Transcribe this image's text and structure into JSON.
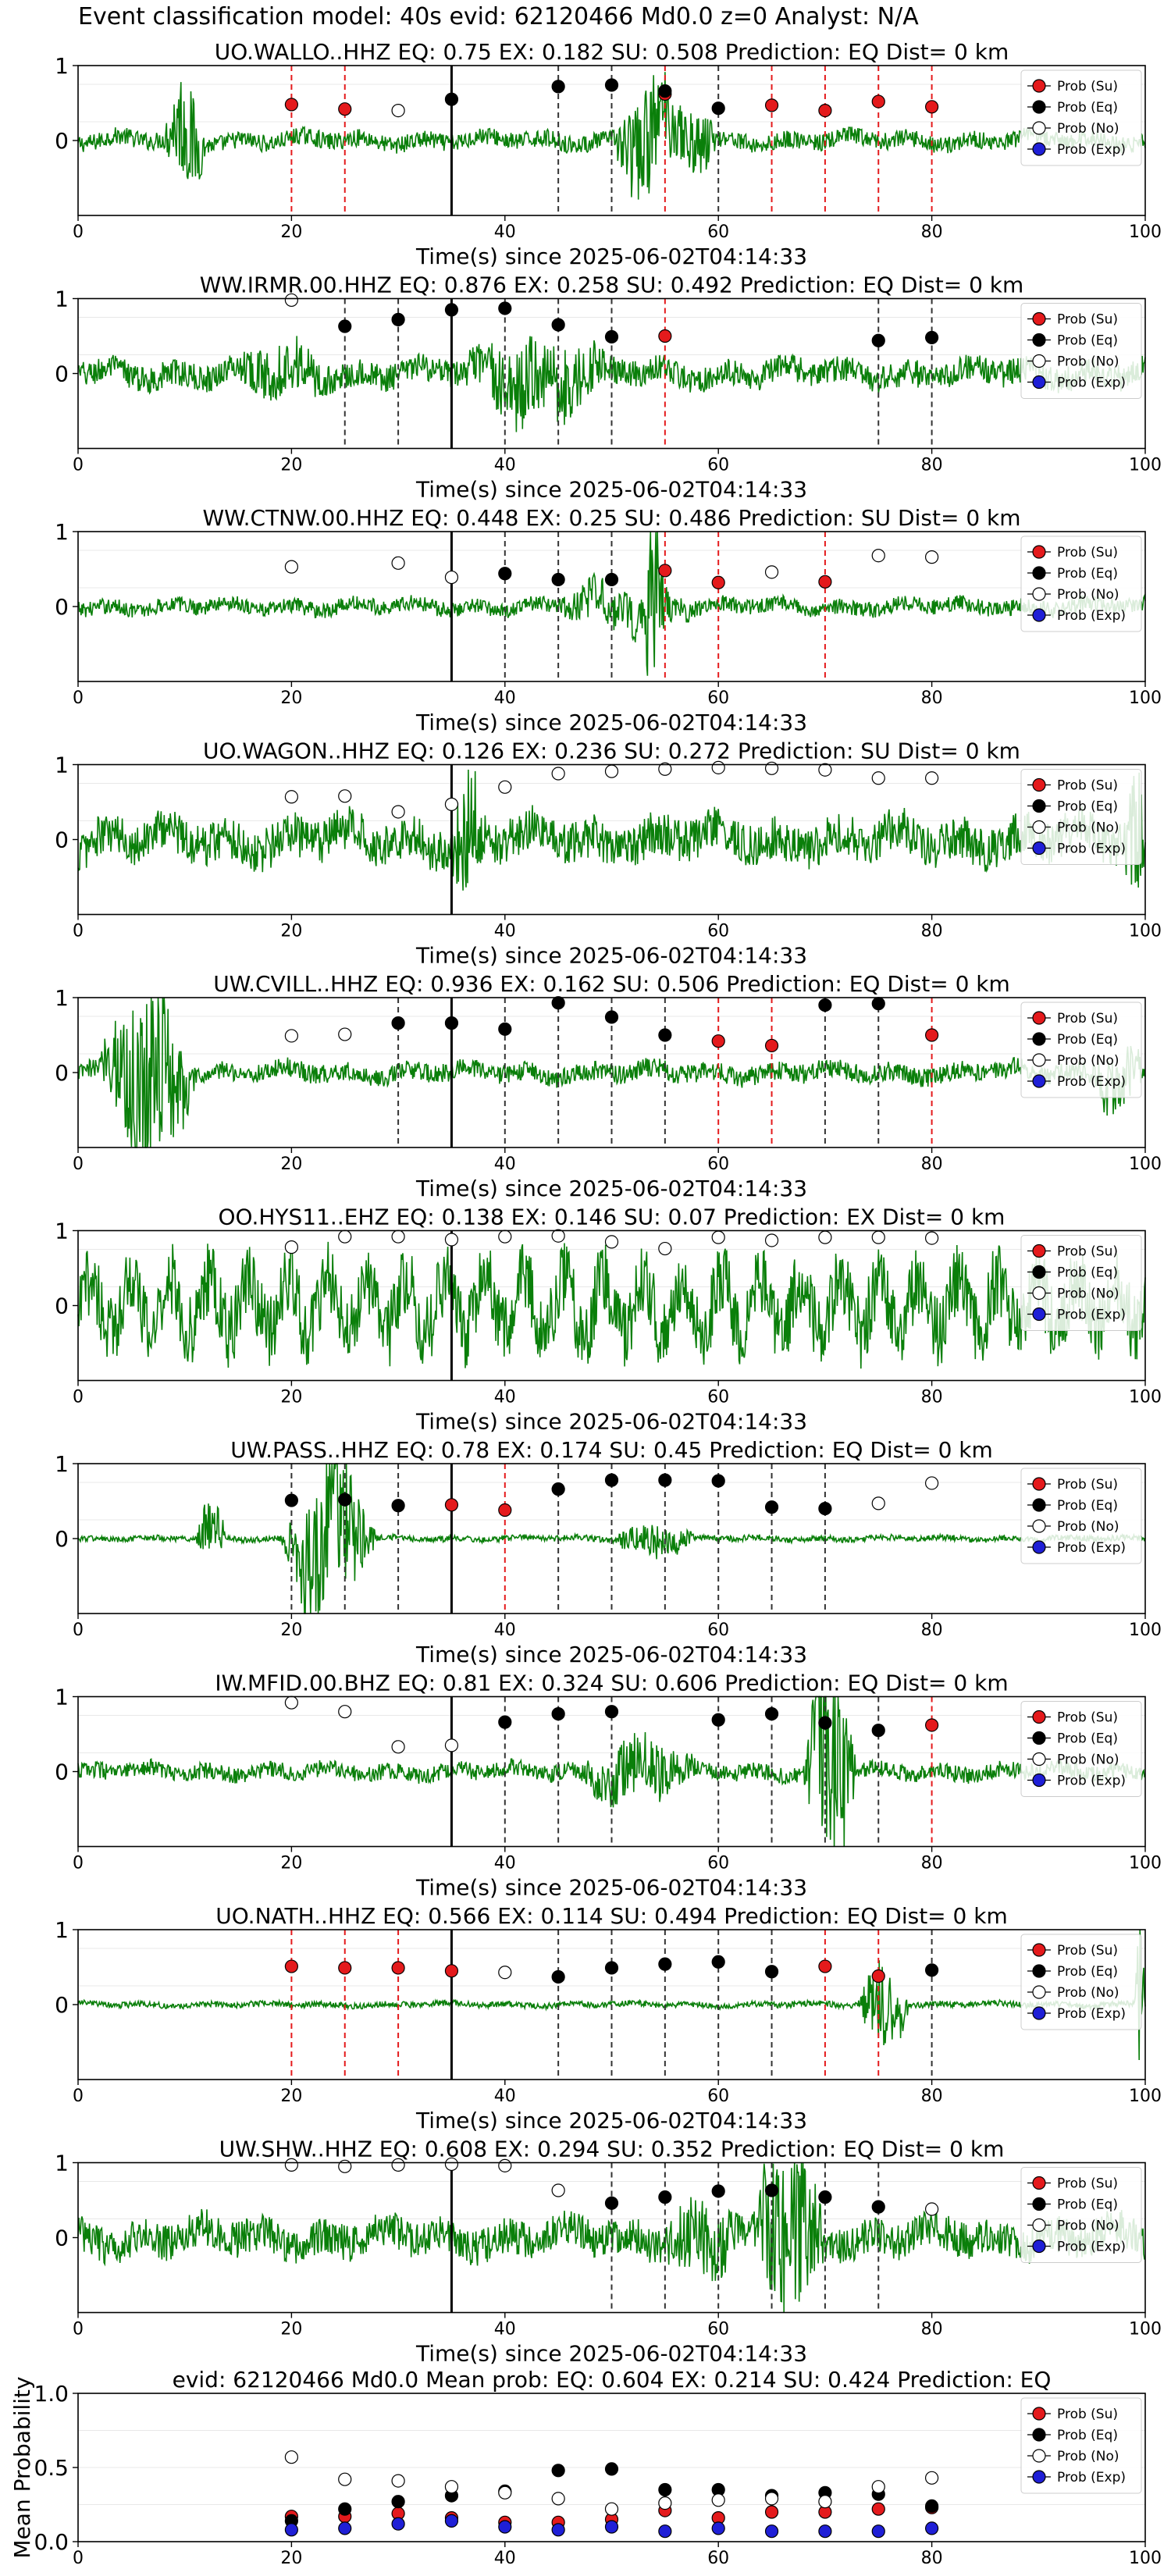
{
  "figure": {
    "suptitle": "Event classification model: 40s evid: 62120466 Md0.0 z=0 Analyst: N/A"
  },
  "colors": {
    "su": "#e41a1c",
    "eq": "#000000",
    "no": "#ffffff",
    "exp": "#1f1fd6",
    "waveform": "#0a7f0a",
    "su_line": "#e41a1c",
    "eq_line": "#333333",
    "origin_line": "#000000"
  },
  "legend_labels": [
    "Prob (Su)",
    "Prob (Eq)",
    "Prob (No)",
    "Prob (Exp)"
  ],
  "chart_data": [
    {
      "type": "scatter",
      "title": "UO.WALLO..HHZ   EQ: 0.75  EX: 0.182  SU: 0.508   Prediction: EQ    Dist= 0 km",
      "xlabel": "Time(s) since 2025-06-02T04:14:33",
      "xlim": [
        0,
        100
      ],
      "ylim": [
        -1,
        1
      ],
      "xticks": [
        "0",
        "20",
        "40",
        "60",
        "80",
        "100"
      ],
      "yticks": [
        "1",
        "0"
      ],
      "origin_line": 35,
      "series": [
        {
          "name": "Prob (Su)",
          "x": [
            20,
            25,
            55,
            65,
            70,
            75,
            80
          ],
          "y": [
            0.48,
            0.42,
            0.62,
            0.47,
            0.4,
            0.52,
            0.45
          ]
        },
        {
          "name": "Prob (Eq)",
          "x": [
            35,
            45,
            50,
            55,
            60
          ],
          "y": [
            0.55,
            0.72,
            0.74,
            0.66,
            0.43
          ]
        },
        {
          "name": "Prob (No)",
          "x": [
            30
          ],
          "y": [
            0.4
          ]
        }
      ],
      "lines": [
        {
          "x": 20,
          "c": "su"
        },
        {
          "x": 25,
          "c": "su"
        },
        {
          "x": 45,
          "c": "eq"
        },
        {
          "x": 50,
          "c": "eq"
        },
        {
          "x": 55,
          "c": "su"
        },
        {
          "x": 60,
          "c": "eq"
        },
        {
          "x": 65,
          "c": "su"
        },
        {
          "x": 70,
          "c": "su"
        },
        {
          "x": 75,
          "c": "su"
        },
        {
          "x": 80,
          "c": "su"
        }
      ]
    },
    {
      "type": "scatter",
      "title": "WW.IRMR.00.HHZ   EQ: 0.876  EX: 0.258  SU: 0.492   Prediction: EQ    Dist= 0 km",
      "xlabel": "Time(s) since 2025-06-02T04:14:33",
      "xlim": [
        0,
        100
      ],
      "ylim": [
        -1,
        1
      ],
      "xticks": [
        "0",
        "20",
        "40",
        "60",
        "80",
        "100"
      ],
      "yticks": [
        "1",
        "0"
      ],
      "origin_line": 35,
      "series": [
        {
          "name": "Prob (Su)",
          "x": [
            55
          ],
          "y": [
            0.5
          ]
        },
        {
          "name": "Prob (Eq)",
          "x": [
            25,
            30,
            35,
            40,
            45,
            50,
            75,
            80
          ],
          "y": [
            0.63,
            0.72,
            0.85,
            0.87,
            0.65,
            0.49,
            0.44,
            0.48
          ]
        },
        {
          "name": "Prob (No)",
          "x": [
            20
          ],
          "y": [
            0.98
          ]
        }
      ],
      "lines": [
        {
          "x": 25,
          "c": "eq"
        },
        {
          "x": 30,
          "c": "eq"
        },
        {
          "x": 40,
          "c": "eq"
        },
        {
          "x": 45,
          "c": "eq"
        },
        {
          "x": 50,
          "c": "eq"
        },
        {
          "x": 55,
          "c": "su"
        },
        {
          "x": 75,
          "c": "eq"
        },
        {
          "x": 80,
          "c": "eq"
        }
      ]
    },
    {
      "type": "scatter",
      "title": "WW.CTNW.00.HHZ   EQ: 0.448  EX: 0.25  SU: 0.486   Prediction: SU    Dist= 0 km",
      "xlabel": "Time(s) since 2025-06-02T04:14:33",
      "xlim": [
        0,
        100
      ],
      "ylim": [
        -1,
        1
      ],
      "xticks": [
        "0",
        "20",
        "40",
        "60",
        "80",
        "100"
      ],
      "yticks": [
        "1",
        "0"
      ],
      "origin_line": 35,
      "series": [
        {
          "name": "Prob (Su)",
          "x": [
            55,
            60,
            70
          ],
          "y": [
            0.48,
            0.32,
            0.33
          ]
        },
        {
          "name": "Prob (Eq)",
          "x": [
            40,
            45,
            50
          ],
          "y": [
            0.44,
            0.36,
            0.36
          ]
        },
        {
          "name": "Prob (No)",
          "x": [
            20,
            30,
            35,
            65,
            75,
            80
          ],
          "y": [
            0.53,
            0.58,
            0.39,
            0.46,
            0.68,
            0.66
          ]
        }
      ],
      "lines": [
        {
          "x": 40,
          "c": "eq"
        },
        {
          "x": 45,
          "c": "eq"
        },
        {
          "x": 50,
          "c": "eq"
        },
        {
          "x": 55,
          "c": "su"
        },
        {
          "x": 60,
          "c": "su"
        },
        {
          "x": 70,
          "c": "su"
        }
      ]
    },
    {
      "type": "scatter",
      "title": "UO.WAGON..HHZ   EQ: 0.126  EX: 0.236  SU: 0.272   Prediction: SU    Dist= 0 km",
      "xlabel": "Time(s) since 2025-06-02T04:14:33",
      "xlim": [
        0,
        100
      ],
      "ylim": [
        -1,
        1
      ],
      "xticks": [
        "0",
        "20",
        "40",
        "60",
        "80",
        "100"
      ],
      "yticks": [
        "1",
        "0"
      ],
      "origin_line": 35,
      "series": [
        {
          "name": "Prob (No)",
          "x": [
            20,
            25,
            30,
            35,
            40,
            45,
            50,
            55,
            60,
            65,
            70,
            75,
            80
          ],
          "y": [
            0.57,
            0.58,
            0.37,
            0.47,
            0.7,
            0.88,
            0.91,
            0.94,
            0.96,
            0.95,
            0.93,
            0.82,
            0.82
          ]
        }
      ],
      "lines": []
    },
    {
      "type": "scatter",
      "title": "UW.CVILL..HHZ   EQ: 0.936  EX: 0.162  SU: 0.506   Prediction: EQ    Dist= 0 km",
      "xlabel": "Time(s) since 2025-06-02T04:14:33",
      "xlim": [
        0,
        100
      ],
      "ylim": [
        -1,
        1
      ],
      "xticks": [
        "0",
        "20",
        "40",
        "60",
        "80",
        "100"
      ],
      "yticks": [
        "1",
        "0"
      ],
      "origin_line": 35,
      "series": [
        {
          "name": "Prob (Su)",
          "x": [
            60,
            65,
            80
          ],
          "y": [
            0.42,
            0.36,
            0.5
          ]
        },
        {
          "name": "Prob (Eq)",
          "x": [
            30,
            35,
            40,
            45,
            50,
            55,
            70,
            75
          ],
          "y": [
            0.66,
            0.66,
            0.58,
            0.93,
            0.74,
            0.5,
            0.9,
            0.92
          ]
        },
        {
          "name": "Prob (No)",
          "x": [
            20,
            25
          ],
          "y": [
            0.49,
            0.51
          ]
        }
      ],
      "lines": [
        {
          "x": 30,
          "c": "eq"
        },
        {
          "x": 40,
          "c": "eq"
        },
        {
          "x": 45,
          "c": "eq"
        },
        {
          "x": 50,
          "c": "eq"
        },
        {
          "x": 55,
          "c": "eq"
        },
        {
          "x": 60,
          "c": "su"
        },
        {
          "x": 65,
          "c": "su"
        },
        {
          "x": 70,
          "c": "eq"
        },
        {
          "x": 75,
          "c": "eq"
        },
        {
          "x": 80,
          "c": "su"
        }
      ]
    },
    {
      "type": "scatter",
      "title": "OO.HYS11..EHZ   EQ: 0.138  EX: 0.146  SU: 0.07   Prediction: EX    Dist= 0 km",
      "xlabel": "Time(s) since 2025-06-02T04:14:33",
      "xlim": [
        0,
        100
      ],
      "ylim": [
        -1,
        1
      ],
      "xticks": [
        "0",
        "20",
        "40",
        "60",
        "80",
        "100"
      ],
      "yticks": [
        "1",
        "0"
      ],
      "origin_line": 35,
      "series": [
        {
          "name": "Prob (No)",
          "x": [
            20,
            25,
            30,
            35,
            40,
            45,
            50,
            55,
            60,
            65,
            70,
            75,
            80
          ],
          "y": [
            0.78,
            0.92,
            0.92,
            0.88,
            0.92,
            0.93,
            0.85,
            0.76,
            0.91,
            0.87,
            0.91,
            0.91,
            0.9
          ]
        }
      ],
      "lines": []
    },
    {
      "type": "scatter",
      "title": "UW.PASS..HHZ   EQ: 0.78  EX: 0.174  SU: 0.45   Prediction: EQ    Dist= 0 km",
      "xlabel": "Time(s) since 2025-06-02T04:14:33",
      "xlim": [
        0,
        100
      ],
      "ylim": [
        -1,
        1
      ],
      "xticks": [
        "0",
        "20",
        "40",
        "60",
        "80",
        "100"
      ],
      "yticks": [
        "1",
        "0"
      ],
      "origin_line": 35,
      "series": [
        {
          "name": "Prob (Su)",
          "x": [
            35,
            40
          ],
          "y": [
            0.45,
            0.38
          ]
        },
        {
          "name": "Prob (Eq)",
          "x": [
            20,
            25,
            30,
            45,
            50,
            55,
            60,
            65,
            70
          ],
          "y": [
            0.51,
            0.52,
            0.44,
            0.66,
            0.78,
            0.78,
            0.77,
            0.42,
            0.4
          ]
        },
        {
          "name": "Prob (No)",
          "x": [
            75,
            80
          ],
          "y": [
            0.47,
            0.74
          ]
        }
      ],
      "lines": [
        {
          "x": 20,
          "c": "eq"
        },
        {
          "x": 25,
          "c": "eq"
        },
        {
          "x": 30,
          "c": "eq"
        },
        {
          "x": 40,
          "c": "su"
        },
        {
          "x": 45,
          "c": "eq"
        },
        {
          "x": 50,
          "c": "eq"
        },
        {
          "x": 55,
          "c": "eq"
        },
        {
          "x": 60,
          "c": "eq"
        },
        {
          "x": 65,
          "c": "eq"
        },
        {
          "x": 70,
          "c": "eq"
        }
      ]
    },
    {
      "type": "scatter",
      "title": "IW.MFID.00.BHZ   EQ: 0.81  EX: 0.324  SU: 0.606   Prediction: EQ    Dist= 0 km",
      "xlabel": "Time(s) since 2025-06-02T04:14:33",
      "xlim": [
        0,
        100
      ],
      "ylim": [
        -1,
        1
      ],
      "xticks": [
        "0",
        "20",
        "40",
        "60",
        "80",
        "100"
      ],
      "yticks": [
        "1",
        "0"
      ],
      "origin_line": 35,
      "series": [
        {
          "name": "Prob (Su)",
          "x": [
            80
          ],
          "y": [
            0.62
          ]
        },
        {
          "name": "Prob (Eq)",
          "x": [
            40,
            45,
            50,
            60,
            65,
            70,
            75
          ],
          "y": [
            0.66,
            0.77,
            0.8,
            0.69,
            0.77,
            0.65,
            0.55
          ]
        },
        {
          "name": "Prob (No)",
          "x": [
            20,
            25,
            30,
            35
          ],
          "y": [
            0.92,
            0.8,
            0.33,
            0.35
          ]
        }
      ],
      "lines": [
        {
          "x": 40,
          "c": "eq"
        },
        {
          "x": 45,
          "c": "eq"
        },
        {
          "x": 50,
          "c": "eq"
        },
        {
          "x": 60,
          "c": "eq"
        },
        {
          "x": 65,
          "c": "eq"
        },
        {
          "x": 70,
          "c": "eq"
        },
        {
          "x": 75,
          "c": "eq"
        },
        {
          "x": 80,
          "c": "su"
        }
      ]
    },
    {
      "type": "scatter",
      "title": "UO.NATH..HHZ   EQ: 0.566  EX: 0.114  SU: 0.494   Prediction: EQ    Dist= 0 km",
      "xlabel": "Time(s) since 2025-06-02T04:14:33",
      "xlim": [
        0,
        100
      ],
      "ylim": [
        -1,
        1
      ],
      "xticks": [
        "0",
        "20",
        "40",
        "60",
        "80",
        "100"
      ],
      "yticks": [
        "1",
        "0"
      ],
      "origin_line": 35,
      "series": [
        {
          "name": "Prob (Su)",
          "x": [
            20,
            25,
            30,
            35,
            70,
            75
          ],
          "y": [
            0.51,
            0.49,
            0.49,
            0.45,
            0.51,
            0.38
          ]
        },
        {
          "name": "Prob (Eq)",
          "x": [
            45,
            50,
            55,
            60,
            65,
            80
          ],
          "y": [
            0.37,
            0.49,
            0.54,
            0.57,
            0.44,
            0.46
          ]
        },
        {
          "name": "Prob (No)",
          "x": [
            40
          ],
          "y": [
            0.43
          ]
        }
      ],
      "lines": [
        {
          "x": 20,
          "c": "su"
        },
        {
          "x": 25,
          "c": "su"
        },
        {
          "x": 30,
          "c": "su"
        },
        {
          "x": 45,
          "c": "eq"
        },
        {
          "x": 50,
          "c": "eq"
        },
        {
          "x": 55,
          "c": "eq"
        },
        {
          "x": 60,
          "c": "eq"
        },
        {
          "x": 65,
          "c": "eq"
        },
        {
          "x": 70,
          "c": "su"
        },
        {
          "x": 75,
          "c": "su"
        },
        {
          "x": 80,
          "c": "eq"
        }
      ]
    },
    {
      "type": "scatter",
      "title": "UW.SHW..HHZ   EQ: 0.608  EX: 0.294  SU: 0.352   Prediction: EQ    Dist= 0 km",
      "xlabel": "Time(s) since 2025-06-02T04:14:33",
      "xlim": [
        0,
        100
      ],
      "ylim": [
        -1,
        1
      ],
      "xticks": [
        "0",
        "20",
        "40",
        "60",
        "80",
        "100"
      ],
      "yticks": [
        "1",
        "0"
      ],
      "origin_line": 35,
      "series": [
        {
          "name": "Prob (Eq)",
          "x": [
            50,
            55,
            60,
            65,
            70,
            75
          ],
          "y": [
            0.46,
            0.54,
            0.62,
            0.63,
            0.54,
            0.41
          ]
        },
        {
          "name": "Prob (No)",
          "x": [
            20,
            25,
            30,
            35,
            40,
            45,
            80
          ],
          "y": [
            0.97,
            0.95,
            0.97,
            0.98,
            0.96,
            0.63,
            0.38
          ]
        }
      ],
      "lines": [
        {
          "x": 50,
          "c": "eq"
        },
        {
          "x": 55,
          "c": "eq"
        },
        {
          "x": 60,
          "c": "eq"
        },
        {
          "x": 65,
          "c": "eq"
        },
        {
          "x": 70,
          "c": "eq"
        },
        {
          "x": 75,
          "c": "eq"
        }
      ]
    },
    {
      "type": "scatter",
      "title": "evid: 62120466  Md0.0   Mean prob:   EQ: 0.604  EX: 0.214  SU: 0.424   Prediction: EQ",
      "xlabel": "",
      "ylabel": "Mean Probability",
      "xlim": [
        0,
        100
      ],
      "ylim": [
        0,
        1
      ],
      "xticks": [
        "0",
        "20",
        "40",
        "60",
        "80",
        "100"
      ],
      "yticks": [
        "1.0",
        "0.5",
        "0.0"
      ],
      "series": [
        {
          "name": "Prob (Su)",
          "x": [
            20,
            25,
            30,
            35,
            40,
            45,
            50,
            55,
            60,
            65,
            70,
            75,
            80
          ],
          "y": [
            0.17,
            0.17,
            0.19,
            0.16,
            0.13,
            0.13,
            0.15,
            0.21,
            0.16,
            0.2,
            0.2,
            0.22,
            0.23
          ]
        },
        {
          "name": "Prob (Eq)",
          "x": [
            20,
            25,
            30,
            35,
            40,
            45,
            50,
            55,
            60,
            65,
            70,
            75,
            80
          ],
          "y": [
            0.14,
            0.22,
            0.27,
            0.31,
            0.34,
            0.48,
            0.49,
            0.35,
            0.35,
            0.31,
            0.33,
            0.32,
            0.24
          ]
        },
        {
          "name": "Prob (No)",
          "x": [
            20,
            25,
            30,
            35,
            40,
            45,
            50,
            55,
            60,
            65,
            70,
            75,
            80
          ],
          "y": [
            0.57,
            0.42,
            0.41,
            0.37,
            0.33,
            0.29,
            0.22,
            0.26,
            0.28,
            0.29,
            0.27,
            0.37,
            0.43
          ]
        },
        {
          "name": "Prob (Exp)",
          "x": [
            20,
            25,
            30,
            35,
            40,
            45,
            50,
            55,
            60,
            65,
            70,
            75,
            80
          ],
          "y": [
            0.08,
            0.09,
            0.12,
            0.14,
            0.1,
            0.08,
            0.1,
            0.07,
            0.09,
            0.07,
            0.07,
            0.07,
            0.09
          ]
        }
      ],
      "lines": []
    }
  ]
}
